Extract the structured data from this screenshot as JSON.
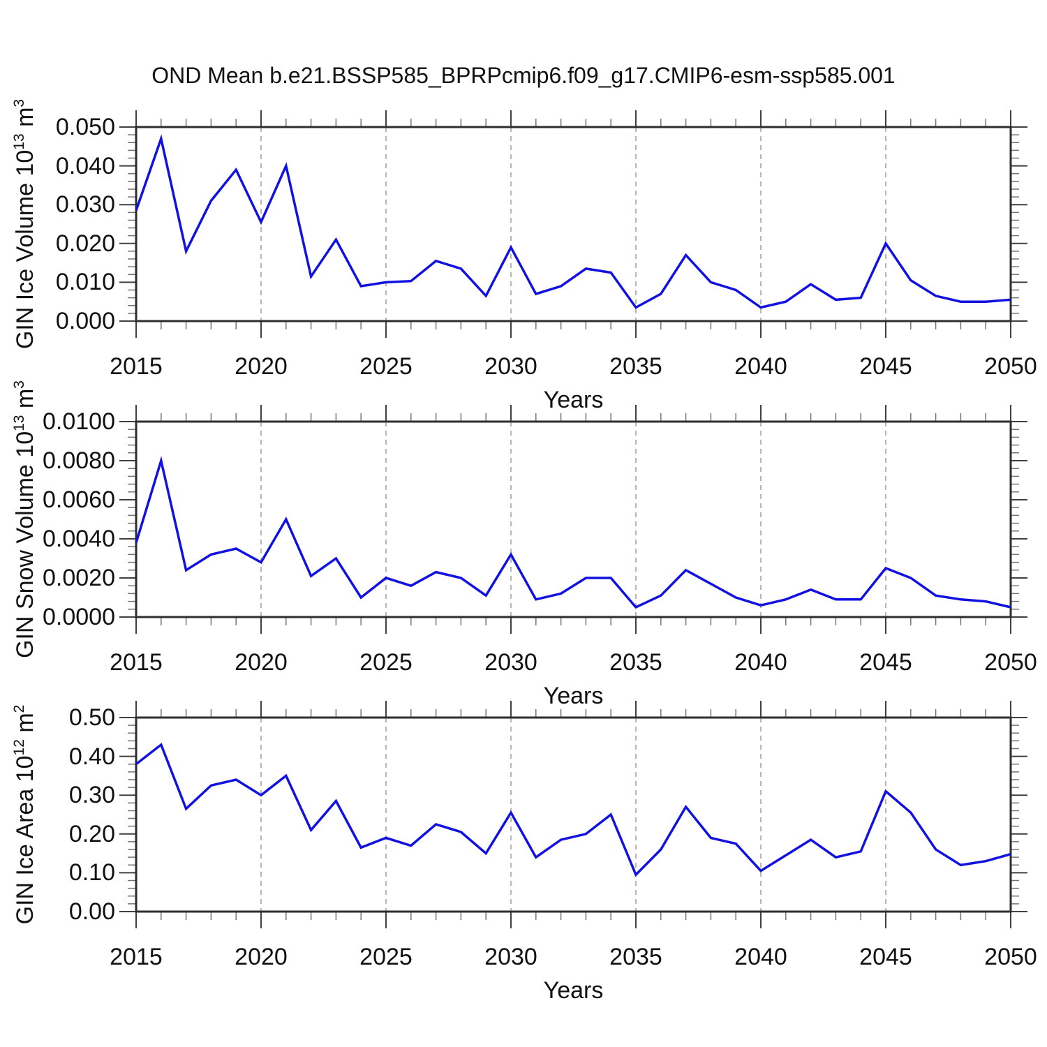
{
  "page": {
    "title": "OND Mean b.e21.BSSP585_BPRPcmip6.f09_g17.CMIP6-esm-ssp585.001",
    "background": "#ffffff"
  },
  "style": {
    "line_color": "#1212e0",
    "border_color": "#2e2e2e",
    "major_tick_color": "#404040",
    "minor_tick_color": "#757575",
    "grid_color": "#9e9e9e",
    "text_color": "#111111"
  },
  "x_axis": {
    "label": "Years",
    "range": [
      2015,
      2050
    ],
    "tick_labels": [
      "2015",
      "2020",
      "2025",
      "2030",
      "2035",
      "2040",
      "2045",
      "2050"
    ],
    "tick_years": [
      2015,
      2020,
      2025,
      2030,
      2035,
      2040,
      2045,
      2050
    ],
    "gridline_years": [
      2020,
      2025,
      2030,
      2035,
      2040,
      2045
    ],
    "minor_tick_every_years": 1,
    "grid_style": "vertical-dashed"
  },
  "chart_data": [
    {
      "type": "line",
      "name": "gin-ice-volume",
      "ylabel_text": "GIN Ice Volume 10^13 m^3",
      "ylabel": {
        "prefix": "GIN Ice Volume 10",
        "sup1": "13",
        "mid": " m",
        "sup2": "3"
      },
      "xlabel": "Years",
      "ylim": [
        0.0,
        0.05
      ],
      "yticks": [
        0.0,
        0.01,
        0.02,
        0.03,
        0.04,
        0.05
      ],
      "ytick_labels": [
        "0.000",
        "0.010",
        "0.020",
        "0.030",
        "0.040",
        "0.050"
      ],
      "minor_divisions_per_major": 5,
      "x": [
        2015,
        2016,
        2017,
        2018,
        2019,
        2020,
        2021,
        2022,
        2023,
        2024,
        2025,
        2026,
        2027,
        2028,
        2029,
        2030,
        2031,
        2032,
        2033,
        2034,
        2035,
        2036,
        2037,
        2038,
        2039,
        2040,
        2041,
        2042,
        2043,
        2044,
        2045,
        2046,
        2047,
        2048,
        2049,
        2050
      ],
      "values": [
        0.0285,
        0.047,
        0.018,
        0.031,
        0.039,
        0.0255,
        0.04,
        0.0115,
        0.021,
        0.009,
        0.01,
        0.0103,
        0.0155,
        0.0135,
        0.0065,
        0.019,
        0.007,
        0.009,
        0.0135,
        0.0125,
        0.0035,
        0.007,
        0.017,
        0.01,
        0.008,
        0.0035,
        0.005,
        0.0095,
        0.0055,
        0.006,
        0.02,
        0.0105,
        0.0065,
        0.005,
        0.005,
        0.0055
      ]
    },
    {
      "type": "line",
      "name": "gin-snow-volume",
      "ylabel_text": "GIN Snow Volume 10^13 m^3",
      "ylabel": {
        "prefix": "GIN Snow Volume 10",
        "sup1": "13",
        "mid": " m",
        "sup2": "3"
      },
      "xlabel": "Years",
      "ylim": [
        0.0,
        0.01
      ],
      "yticks": [
        0.0,
        0.002,
        0.004,
        0.006,
        0.008,
        0.01
      ],
      "ytick_labels": [
        "0.0000",
        "0.0020",
        "0.0040",
        "0.0060",
        "0.0080",
        "0.0100"
      ],
      "minor_divisions_per_major": 5,
      "x": [
        2015,
        2016,
        2017,
        2018,
        2019,
        2020,
        2021,
        2022,
        2023,
        2024,
        2025,
        2026,
        2027,
        2028,
        2029,
        2030,
        2031,
        2032,
        2033,
        2034,
        2035,
        2036,
        2037,
        2038,
        2039,
        2040,
        2041,
        2042,
        2043,
        2044,
        2045,
        2046,
        2047,
        2048,
        2049,
        2050
      ],
      "values": [
        0.0038,
        0.008,
        0.0024,
        0.0032,
        0.0035,
        0.0028,
        0.005,
        0.0021,
        0.003,
        0.001,
        0.002,
        0.0016,
        0.0023,
        0.002,
        0.0011,
        0.0032,
        0.0009,
        0.0012,
        0.002,
        0.002,
        0.0005,
        0.0011,
        0.0024,
        0.0017,
        0.001,
        0.0006,
        0.0009,
        0.0014,
        0.0009,
        0.0009,
        0.0025,
        0.002,
        0.0011,
        0.0009,
        0.0008,
        0.0005
      ]
    },
    {
      "type": "line",
      "name": "gin-ice-area",
      "ylabel_text": "GIN Ice Area 10^12 m^2",
      "ylabel": {
        "prefix": "GIN Ice Area 10",
        "sup1": "12",
        "mid": " m",
        "sup2": "2"
      },
      "xlabel": "Years",
      "ylim": [
        0.0,
        0.5
      ],
      "yticks": [
        0.0,
        0.1,
        0.2,
        0.3,
        0.4,
        0.5
      ],
      "ytick_labels": [
        "0.00",
        "0.10",
        "0.20",
        "0.30",
        "0.40",
        "0.50"
      ],
      "minor_divisions_per_major": 5,
      "x": [
        2015,
        2016,
        2017,
        2018,
        2019,
        2020,
        2021,
        2022,
        2023,
        2024,
        2025,
        2026,
        2027,
        2028,
        2029,
        2030,
        2031,
        2032,
        2033,
        2034,
        2035,
        2036,
        2037,
        2038,
        2039,
        2040,
        2041,
        2042,
        2043,
        2044,
        2045,
        2046,
        2047,
        2048,
        2049,
        2050
      ],
      "values": [
        0.38,
        0.43,
        0.265,
        0.325,
        0.34,
        0.3,
        0.35,
        0.21,
        0.285,
        0.165,
        0.19,
        0.17,
        0.225,
        0.205,
        0.15,
        0.255,
        0.14,
        0.185,
        0.2,
        0.25,
        0.095,
        0.16,
        0.27,
        0.19,
        0.175,
        0.105,
        0.145,
        0.185,
        0.14,
        0.155,
        0.31,
        0.255,
        0.16,
        0.12,
        0.13,
        0.148
      ]
    }
  ]
}
